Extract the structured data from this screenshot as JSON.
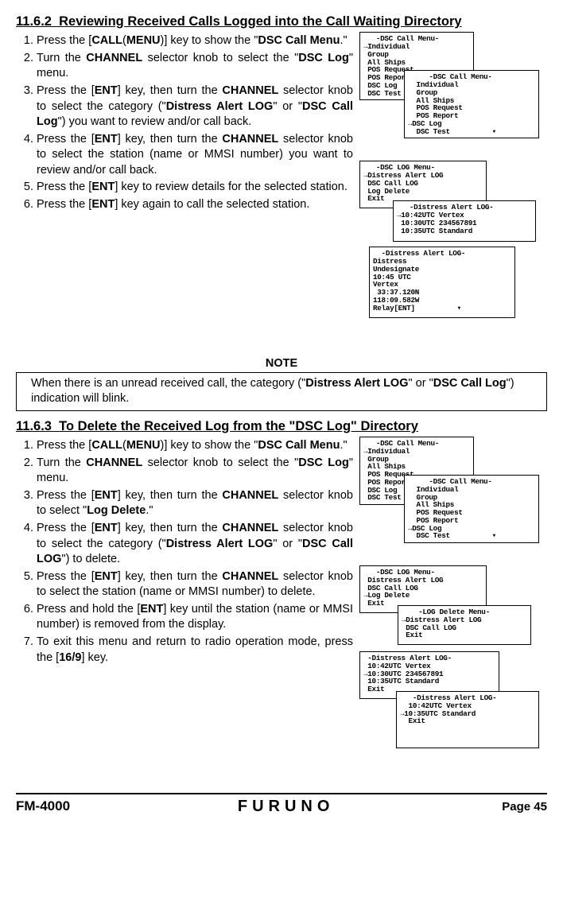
{
  "section1": {
    "number": "11.6.2",
    "title": "Reviewing Received Calls Logged into the Call Waiting Directory",
    "steps": [
      "Press the [<b>CALL</b>(<b>MENU</b>)] key to show the \"<b>DSC Call Menu</b>.\"",
      "Turn the <b>CHANNEL</b> selector knob to select the \"<b>DSC Log</b>\" menu.",
      "Press the [<b>ENT</b>] key, then turn the <b>CHANNEL</b> selector knob to select the category (\"<b>Distress Alert LOG</b>\" or \"<b>DSC Call Log</b>\") you want to review and/or call back.",
      "Press the [<b>ENT</b>] key, then turn the <b>CHANNEL</b> selector knob to select the station (name or MMSI number) you want to review and/or call back.",
      "Press the [<b>ENT</b>] key to review details for the selected station.",
      "Press the [<b>ENT</b>] key again to call the selected station."
    ],
    "screensA": {
      "s1": "   -DSC Call Menu-\n→Individual\n Group\n All Ships\n POS Request\n POS Report\n DSC Log\n DSC Test",
      "s2": "     -DSC Call Menu-\n  Individual\n  Group\n  All Ships\n  POS Request\n  POS Report\n→DSC Log\n  DSC Test          ▾"
    },
    "screensB": {
      "s1": "   -DSC LOG Menu-\n→Distress Alert LOG\n DSC Call LOG\n Log Delete\n Exit",
      "s2": "   -Distress Alert LOG-\n→10:42UTC Vertex\n 10:30UTC 234567891\n 10:35UTC Standard",
      "s3": "  -Distress Alert LOG-\nDistress\nUndesignate\n10:45 UTC\nVertex\n 33:37.120N\n118:09.582W\nRelay[ENT]          ▾"
    }
  },
  "note": {
    "title": "NOTE",
    "text": "When there is an unread received call, the category (\"<b>Distress Alert LOG</b>\" or \"<b>DSC Call Log</b>\") indication will blink."
  },
  "section2": {
    "number": "11.6.3",
    "title": "To Delete the Received Log from the \"DSC Log\" Directory",
    "steps": [
      "Press the [<b>CALL</b>(<b>MENU</b>)] key to show the \"<b>DSC Call Menu</b>.\"",
      "Turn the <b>CHANNEL</b> selector knob to select the \"<b>DSC Log</b>\" menu.",
      "Press the [<b>ENT</b>] key, then turn the <b>CHANNEL</b> selector knob to select \"<b>Log Delete</b>.\"",
      "Press the [<b>ENT</b>] key, then turn the <b>CHANNEL</b> selector knob to select the category (\"<b>Distress Alert LOG</b>\" or \"<b>DSC Call LOG</b>\") to delete.",
      "Press the [<b>ENT</b>] key, then turn the <b>CHANNEL</b> selector knob to select the station (name or MMSI  number) to delete.",
      "Press and hold the [<b>ENT</b>] key until the station (name or MMSI  number) is removed from the display.",
      "To exit this menu and return to radio operation mode, press the [<b>16/9</b>] key."
    ],
    "screensA": {
      "s1": "   -DSC Call Menu-\n→Individual\n Group\n All Ships\n POS Request\n POS Report\n DSC Log\n DSC Test",
      "s2": "     -DSC Call Menu-\n  Individual\n  Group\n  All Ships\n  POS Request\n  POS Report\n→DSC Log\n  DSC Test          ▾"
    },
    "screensB": {
      "s1": "   -DSC LOG Menu-\n Distress Alert LOG\n DSC Call LOG\n→Log Delete\n Exit",
      "s2": "    -LOG Delete Menu-\n→Distress Alert LOG\n DSC Call LOG\n Exit",
      "s3": " -Distress Alert LOG-\n 10:42UTC Vertex\n→10:30UTC 234567891\n 10:35UTC Standard\n Exit",
      "s4": "   -Distress Alert LOG-\n  10:42UTC Vertex\n→10:35UTC Standard\n  Exit"
    }
  },
  "footer": {
    "model": "FM-4000",
    "brand": "FURUNO",
    "page": "Page 45"
  }
}
